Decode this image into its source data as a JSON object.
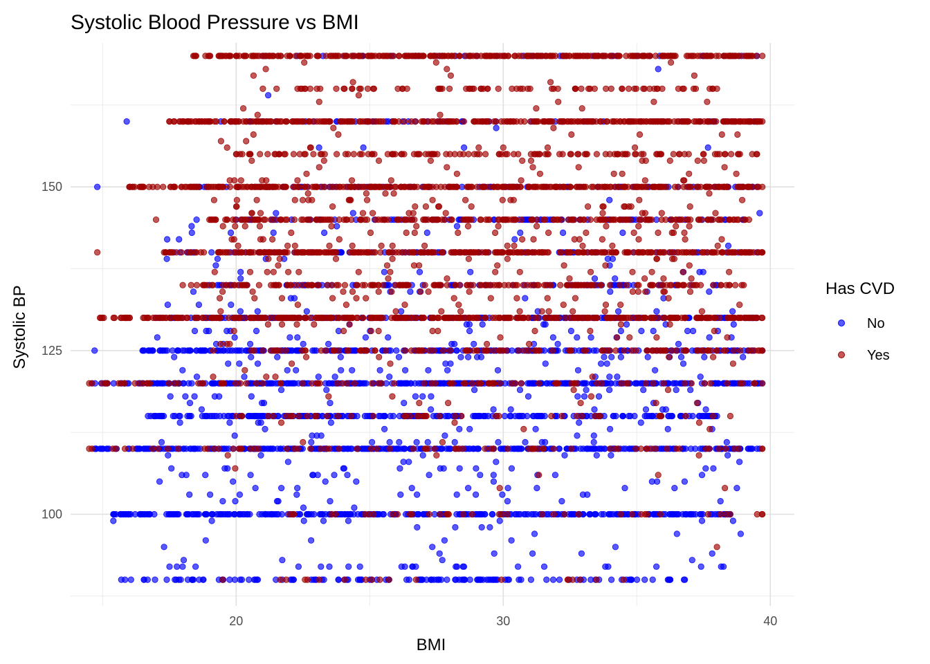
{
  "chart_data": {
    "type": "scatter",
    "title": "Systolic Blood Pressure vs BMI",
    "xlabel": "BMI",
    "ylabel": "Systolic BP",
    "xlim": [
      13.8,
      40.9
    ],
    "ylim": [
      86,
      172
    ],
    "x_ticks": [
      20,
      30,
      40
    ],
    "y_ticks": [
      100,
      125,
      150
    ],
    "grid": true,
    "legend": {
      "title": "Has CVD",
      "position": "right",
      "entries": [
        {
          "label": "No",
          "color": "#0000ff"
        },
        {
          "label": "Yes",
          "color": "#a00000"
        }
      ]
    },
    "point_opacity": 0.65,
    "series": [
      {
        "name": "No",
        "color": "#0000ff",
        "bands": [
          {
            "y": 90,
            "x_from": 15.7,
            "x_to": 36.8,
            "density": 0.45
          },
          {
            "y": 100,
            "x_from": 15.4,
            "x_to": 38.5,
            "density": 1.0
          },
          {
            "y": 110,
            "x_from": 14.7,
            "x_to": 39.6,
            "density": 1.0
          },
          {
            "y": 115,
            "x_from": 16.7,
            "x_to": 38.0,
            "density": 0.75
          },
          {
            "y": 120,
            "x_from": 14.6,
            "x_to": 39.7,
            "density": 1.0
          },
          {
            "y": 125,
            "x_from": 16.5,
            "x_to": 39.7,
            "density": 0.75
          },
          {
            "y": 130,
            "x_from": 17.0,
            "x_to": 39.5,
            "density": 0.6
          },
          {
            "y": 135,
            "x_from": 19.0,
            "x_to": 38.0,
            "density": 0.3
          },
          {
            "y": 140,
            "x_from": 17.5,
            "x_to": 39.5,
            "density": 0.3
          },
          {
            "y": 145,
            "x_from": 20.0,
            "x_to": 39.0,
            "density": 0.3
          },
          {
            "y": 150,
            "x_from": 18.5,
            "x_to": 39.5,
            "density": 0.3
          },
          {
            "y": 160,
            "x_from": 19.0,
            "x_to": 39.5,
            "density": 0.2
          },
          {
            "y": 170,
            "x_from": 21.0,
            "x_to": 39.5,
            "density": 0.2
          }
        ],
        "scattered": {
          "count": 460,
          "x_range": [
            17.0,
            39.0
          ],
          "y_range": [
            92,
            168
          ],
          "y_peak": 118
        },
        "points": [
          {
            "x": 14.8,
            "y": 150
          },
          {
            "x": 14.7,
            "y": 125
          },
          {
            "x": 15.4,
            "y": 99
          },
          {
            "x": 15.9,
            "y": 160
          },
          {
            "x": 16.5,
            "y": 125
          },
          {
            "x": 21.2,
            "y": 164
          },
          {
            "x": 18.4,
            "y": 134
          },
          {
            "x": 17.3,
            "y": 95
          },
          {
            "x": 17.8,
            "y": 100
          },
          {
            "x": 27.8,
            "y": 96
          },
          {
            "x": 34.2,
            "y": 95
          },
          {
            "x": 39.6,
            "y": 146
          },
          {
            "x": 38.6,
            "y": 125
          },
          {
            "x": 35.8,
            "y": 168
          },
          {
            "x": 24.2,
            "y": 99
          }
        ]
      },
      {
        "name": "Yes",
        "color": "#a00000",
        "bands": [
          {
            "y": 90,
            "x_from": 19.5,
            "x_to": 34.5,
            "density": 0.08
          },
          {
            "y": 100,
            "x_from": 22.0,
            "x_to": 39.7,
            "density": 0.15
          },
          {
            "y": 110,
            "x_from": 14.5,
            "x_to": 39.7,
            "density": 0.2
          },
          {
            "y": 115,
            "x_from": 20.0,
            "x_to": 38.5,
            "density": 0.15
          },
          {
            "y": 120,
            "x_from": 14.6,
            "x_to": 39.7,
            "density": 0.25
          },
          {
            "y": 125,
            "x_from": 21.0,
            "x_to": 39.7,
            "density": 0.4
          },
          {
            "y": 130,
            "x_from": 14.9,
            "x_to": 39.7,
            "density": 1.0
          },
          {
            "y": 135,
            "x_from": 18.0,
            "x_to": 39.0,
            "density": 0.55
          },
          {
            "y": 140,
            "x_from": 17.3,
            "x_to": 39.7,
            "density": 1.0
          },
          {
            "y": 145,
            "x_from": 19.0,
            "x_to": 39.2,
            "density": 0.65
          },
          {
            "y": 150,
            "x_from": 16.0,
            "x_to": 39.7,
            "density": 1.0
          },
          {
            "y": 155,
            "x_from": 20.0,
            "x_to": 39.5,
            "density": 0.45
          },
          {
            "y": 160,
            "x_from": 17.5,
            "x_to": 39.7,
            "density": 1.0
          },
          {
            "y": 165,
            "x_from": 21.0,
            "x_to": 38.0,
            "density": 0.3
          },
          {
            "y": 170,
            "x_from": 18.4,
            "x_to": 39.7,
            "density": 1.0
          }
        ],
        "scattered": {
          "count": 420,
          "x_range": [
            19.0,
            39.0
          ],
          "y_range": [
            100,
            170
          ],
          "y_peak": 140
        },
        "points": [
          {
            "x": 14.8,
            "y": 140
          },
          {
            "x": 14.5,
            "y": 120
          },
          {
            "x": 14.6,
            "y": 110
          },
          {
            "x": 16.2,
            "y": 150
          },
          {
            "x": 17.0,
            "y": 145
          },
          {
            "x": 37.0,
            "y": 134
          },
          {
            "x": 34.5,
            "y": 145
          },
          {
            "x": 36.0,
            "y": 136
          },
          {
            "x": 38.3,
            "y": 104
          },
          {
            "x": 27.5,
            "y": 109
          },
          {
            "x": 35.8,
            "y": 106
          },
          {
            "x": 38.0,
            "y": 95
          }
        ]
      }
    ]
  }
}
